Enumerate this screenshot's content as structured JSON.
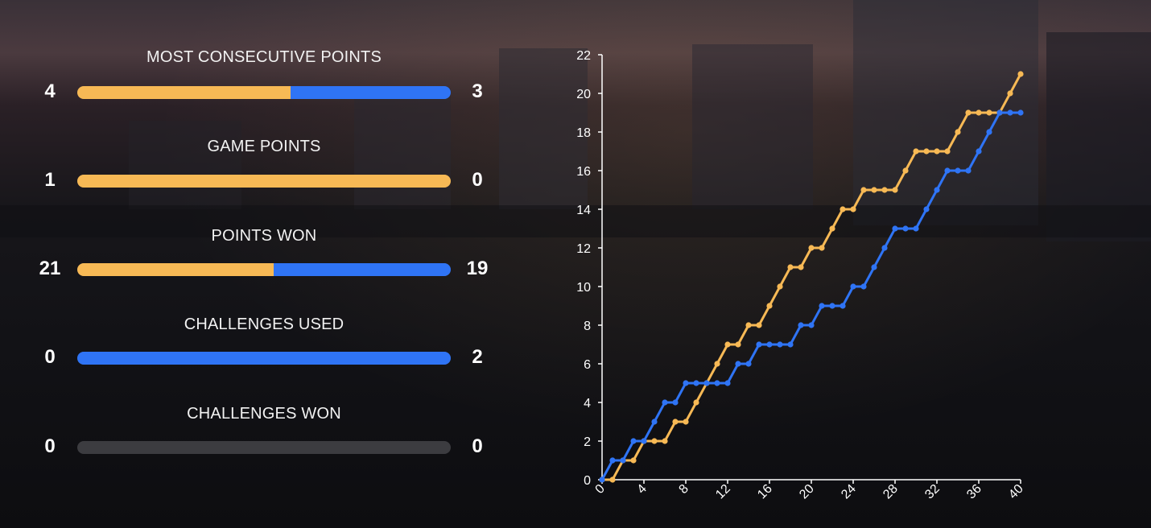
{
  "colors": {
    "player1": "#f7b955",
    "player2": "#2f74f5",
    "empty": "#3c3c40"
  },
  "stats": [
    {
      "title": "MOST CONSECUTIVE POINTS",
      "left": "4",
      "right": "3"
    },
    {
      "title": "GAME POINTS",
      "left": "1",
      "right": "0"
    },
    {
      "title": "POINTS WON",
      "left": "21",
      "right": "19"
    },
    {
      "title": "CHALLENGES USED",
      "left": "0",
      "right": "2"
    },
    {
      "title": "CHALLENGES WON",
      "left": "0",
      "right": "0"
    }
  ],
  "chart_data": {
    "type": "line",
    "xlim": [
      0,
      40
    ],
    "ylim": [
      0,
      22
    ],
    "xticks": [
      0,
      4,
      8,
      12,
      16,
      20,
      24,
      28,
      32,
      36,
      40
    ],
    "yticks": [
      0,
      2,
      4,
      6,
      8,
      10,
      12,
      14,
      16,
      18,
      20,
      22
    ],
    "x": [
      0,
      1,
      2,
      3,
      4,
      5,
      6,
      7,
      8,
      9,
      10,
      11,
      12,
      13,
      14,
      15,
      16,
      17,
      18,
      19,
      20,
      21,
      22,
      23,
      24,
      25,
      26,
      27,
      28,
      29,
      30,
      31,
      32,
      33,
      34,
      35,
      36,
      37,
      38,
      39,
      40
    ],
    "series": [
      {
        "color": "#f7b955",
        "values": [
          0,
          0,
          1,
          1,
          2,
          2,
          2,
          3,
          3,
          4,
          5,
          6,
          7,
          7,
          8,
          8,
          9,
          10,
          11,
          11,
          12,
          12,
          13,
          14,
          14,
          15,
          15,
          15,
          15,
          16,
          17,
          17,
          17,
          17,
          18,
          19,
          19,
          19,
          19,
          20,
          21
        ]
      },
      {
        "color": "#2f74f5",
        "values": [
          0,
          1,
          1,
          2,
          2,
          3,
          4,
          4,
          5,
          5,
          5,
          5,
          5,
          6,
          6,
          7,
          7,
          7,
          7,
          8,
          8,
          9,
          9,
          9,
          10,
          10,
          11,
          12,
          13,
          13,
          13,
          14,
          15,
          16,
          16,
          16,
          17,
          18,
          19,
          19,
          19
        ]
      }
    ],
    "grid": false,
    "legend": "none"
  }
}
